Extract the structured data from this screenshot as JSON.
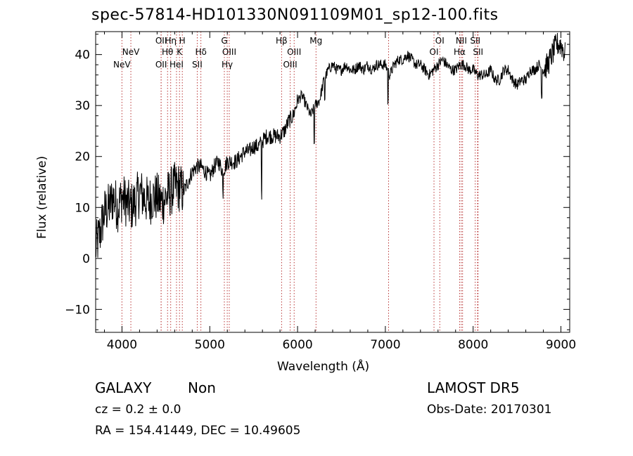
{
  "title": "spec-57814-HD101330N091109M01_sp12-100.fits",
  "footer": {
    "class": "GALAXY",
    "subclass": "Non",
    "survey": "LAMOST DR5",
    "cz": "cz = 0.2 ± 0.0",
    "obs_date": "Obs-Date: 20170301",
    "coords": "RA = 154.41449, DEC =  10.49605"
  },
  "chart_data": {
    "type": "line",
    "title": "spec-57814-HD101330N091109M01_sp12-100.fits",
    "xlabel": "Wavelength (Å)",
    "ylabel": "Flux (relative)",
    "xlim": [
      3700,
      9100
    ],
    "ylim": [
      -14.5,
      44.5
    ],
    "xticks": [
      4000,
      5000,
      6000,
      7000,
      8000,
      9000
    ],
    "yticks": [
      -10,
      0,
      10,
      20,
      30,
      40
    ],
    "xtick_labels": [
      "4000",
      "5000",
      "6000",
      "7000",
      "8000",
      "9000"
    ],
    "ytick_labels": [
      "−10",
      "0",
      "10",
      "20",
      "30",
      "40"
    ],
    "grid": false,
    "line_color": "#000000",
    "marker_color": "#b22222",
    "line_markers": [
      {
        "label": "NeV",
        "x": 3999,
        "row": 2
      },
      {
        "label": "NeV",
        "x": 4101,
        "row": 1
      },
      {
        "label": "OII",
        "x": 4446,
        "row": 2
      },
      {
        "label": "OII",
        "x": 4446,
        "row": 0
      },
      {
        "label": "Hη",
        "x": 4555,
        "row": 0
      },
      {
        "label": "Hθ",
        "x": 4519,
        "row": 1
      },
      {
        "label": "HeI",
        "x": 4621,
        "row": 2
      },
      {
        "label": "H",
        "x": 4687,
        "row": 0
      },
      {
        "label": "K",
        "x": 4655,
        "row": 1
      },
      {
        "label": "SII",
        "x": 4857,
        "row": 2
      },
      {
        "label": "Hδ",
        "x": 4899,
        "row": 1
      },
      {
        "label": "G",
        "x": 5166,
        "row": 0
      },
      {
        "label": "OIII",
        "x": 5222,
        "row": 1
      },
      {
        "label": "Hγ",
        "x": 5199,
        "row": 2
      },
      {
        "label": "Hβ",
        "x": 5818,
        "row": 0
      },
      {
        "label": "OIII",
        "x": 5916,
        "row": 2
      },
      {
        "label": "OIII",
        "x": 5961,
        "row": 1
      },
      {
        "label": "Mg",
        "x": 6210,
        "row": 0
      },
      {
        "label": "OI",
        "x": 7037,
        "row": null
      },
      {
        "label": "OI",
        "x": 7620,
        "row": 0
      },
      {
        "label": "OI",
        "x": 7554,
        "row": 1
      },
      {
        "label": "NII",
        "x": 7865,
        "row": 0
      },
      {
        "label": "Hα",
        "x": 7846,
        "row": 1
      },
      {
        "label": "SII",
        "x": 8024,
        "row": 0
      },
      {
        "label": "SII",
        "x": 8056,
        "row": 1
      },
      {
        "label": "",
        "x": 7880,
        "row": null
      },
      {
        "label": "",
        "x": 8050,
        "row": null
      }
    ],
    "spectrum": {
      "x": [
        3700,
        3750,
        3800,
        3850,
        3900,
        3950,
        4000,
        4050,
        4100,
        4150,
        4200,
        4250,
        4300,
        4350,
        4400,
        4450,
        4500,
        4550,
        4600,
        4650,
        4700,
        4750,
        4800,
        4850,
        4900,
        4950,
        5000,
        5050,
        5100,
        5150,
        5200,
        5250,
        5300,
        5350,
        5400,
        5450,
        5500,
        5550,
        5600,
        5650,
        5700,
        5750,
        5800,
        5850,
        5900,
        5950,
        6000,
        6050,
        6100,
        6150,
        6200,
        6250,
        6300,
        6350,
        6400,
        6450,
        6500,
        6550,
        6600,
        6650,
        6700,
        6750,
        6800,
        6850,
        6900,
        6950,
        7000,
        7050,
        7100,
        7150,
        7200,
        7250,
        7300,
        7350,
        7400,
        7450,
        7500,
        7550,
        7600,
        7650,
        7700,
        7750,
        7800,
        7850,
        7900,
        7950,
        8000,
        8050,
        8100,
        8150,
        8200,
        8250,
        8300,
        8350,
        8400,
        8450,
        8500,
        8550,
        8600,
        8650,
        8700,
        8750,
        8800,
        8850,
        8900,
        8950,
        9000,
        9050
      ],
      "y": [
        2,
        5,
        9,
        10,
        12,
        10,
        12,
        11,
        10,
        11,
        13,
        12,
        11,
        12,
        12,
        11,
        12,
        13,
        14,
        14,
        13,
        15,
        17,
        18,
        18,
        17,
        16,
        18,
        19,
        17,
        19,
        19,
        19,
        20,
        21,
        21,
        22,
        22,
        23,
        24,
        24,
        24,
        24,
        25,
        27,
        28,
        31,
        32,
        30,
        28,
        30,
        31,
        35,
        37,
        38,
        37,
        37,
        38,
        37,
        37,
        38,
        37,
        38,
        37,
        38,
        38,
        38,
        36,
        38,
        39,
        39,
        40,
        39,
        38,
        38,
        37,
        36,
        37,
        38,
        39,
        38,
        37,
        37,
        38,
        38,
        37,
        37,
        36,
        36,
        36,
        37,
        35,
        35,
        37,
        37,
        35,
        34,
        35,
        35,
        37,
        37,
        38,
        37,
        38,
        40,
        42,
        42,
        40
      ]
    }
  }
}
